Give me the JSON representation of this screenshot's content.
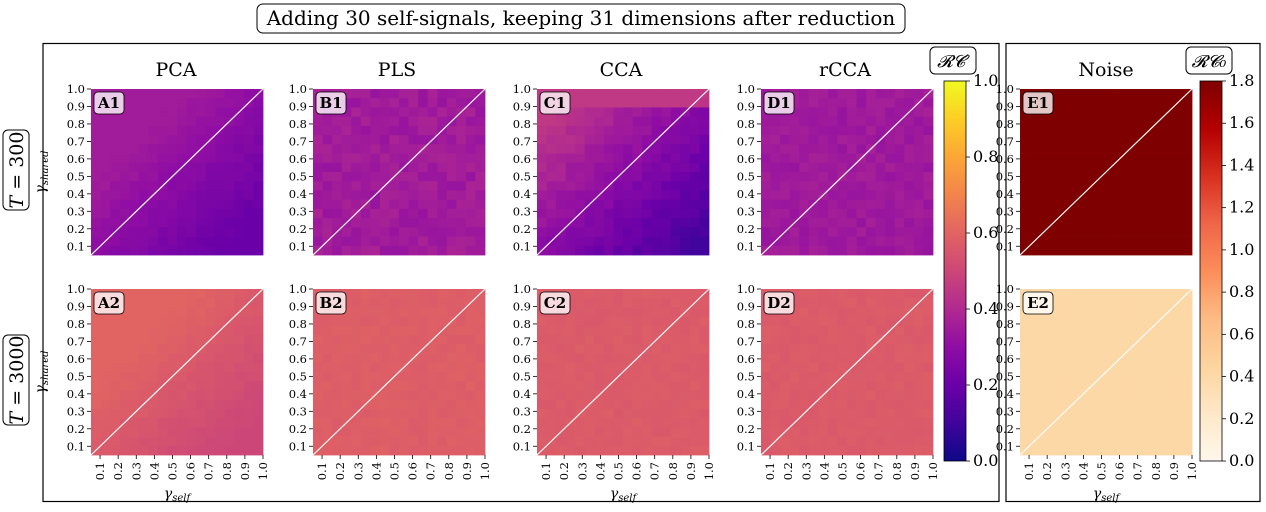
{
  "title": "Adding 30 self-signals, keeping 31 dimensions after reduction",
  "columns": [
    "PCA",
    "PLS",
    "CCA",
    "rCCA",
    "Noise"
  ],
  "rows": [
    {
      "label": "T = 300",
      "var": "T",
      "eq": " = 300"
    },
    {
      "label": "T = 3000",
      "var": "T",
      "eq": " = 3000"
    }
  ],
  "axis_ticks": [
    "0.1",
    "0.2",
    "0.3",
    "0.4",
    "0.5",
    "0.6",
    "0.7",
    "0.8",
    "0.9",
    "1.0"
  ],
  "xlabel": "γself",
  "ylabel": "γshared",
  "colorbar_main": {
    "title": "𝓡𝓒′",
    "ticks": [
      "0.0",
      "0.2",
      "0.4",
      "0.6",
      "0.8",
      "1.0"
    ],
    "colormap": "plasma",
    "range": [
      0,
      1
    ]
  },
  "colorbar_noise": {
    "title": "𝓡𝓒₀",
    "ticks": [
      "0.0",
      "0.2",
      "0.4",
      "0.6",
      "0.8",
      "1.0",
      "1.2",
      "1.4",
      "1.6",
      "1.8"
    ],
    "colormap": "OrRd",
    "range": [
      0,
      1.8
    ]
  },
  "chart_data": {
    "type": "heatmap",
    "title": "Adding 30 self-signals, keeping 31 dimensions after reduction",
    "xlabel": "γself",
    "ylabel": "γshared",
    "x": [
      0.1,
      0.2,
      0.3,
      0.4,
      0.5,
      0.6,
      0.7,
      0.8,
      0.9,
      1.0
    ],
    "y": [
      0.1,
      0.2,
      0.3,
      0.4,
      0.5,
      0.6,
      0.7,
      0.8,
      0.9,
      1.0
    ],
    "panels": [
      {
        "id": "A1",
        "method": "PCA",
        "row": "T = 300",
        "colorbar": "RC'",
        "value_range": [
          0.2,
          0.35
        ],
        "pattern": "higher above diagonal (~0.33), lower toward bottom-right (~0.2)"
      },
      {
        "id": "B1",
        "method": "PLS",
        "row": "T = 300",
        "colorbar": "RC'",
        "value_range": [
          0.32,
          0.38
        ],
        "pattern": "nearly uniform"
      },
      {
        "id": "C1",
        "method": "CCA",
        "row": "T = 300",
        "colorbar": "RC'",
        "value_range": [
          0.1,
          0.45
        ],
        "pattern": "high near top edge (~0.45), lowest at bottom-right (~0.1)"
      },
      {
        "id": "D1",
        "method": "rCCA",
        "row": "T = 300",
        "colorbar": "RC'",
        "value_range": [
          0.32,
          0.37
        ],
        "pattern": "nearly uniform"
      },
      {
        "id": "E1",
        "method": "Noise",
        "row": "T = 300",
        "colorbar": "RC0",
        "value_range": [
          1.8,
          1.8
        ],
        "pattern": "uniform"
      },
      {
        "id": "A2",
        "method": "PCA",
        "row": "T = 3000",
        "colorbar": "RC'",
        "value_range": [
          0.5,
          0.6
        ],
        "pattern": "slightly higher above diagonal"
      },
      {
        "id": "B2",
        "method": "PLS",
        "row": "T = 3000",
        "colorbar": "RC'",
        "value_range": [
          0.57,
          0.59
        ],
        "pattern": "uniform"
      },
      {
        "id": "C2",
        "method": "CCA",
        "row": "T = 3000",
        "colorbar": "RC'",
        "value_range": [
          0.56,
          0.58
        ],
        "pattern": "uniform"
      },
      {
        "id": "D2",
        "method": "rCCA",
        "row": "T = 3000",
        "colorbar": "RC'",
        "value_range": [
          0.56,
          0.58
        ],
        "pattern": "uniform"
      },
      {
        "id": "E2",
        "method": "Noise",
        "row": "T = 3000",
        "colorbar": "RC0",
        "value_range": [
          0.4,
          0.4
        ],
        "pattern": "uniform"
      }
    ]
  }
}
